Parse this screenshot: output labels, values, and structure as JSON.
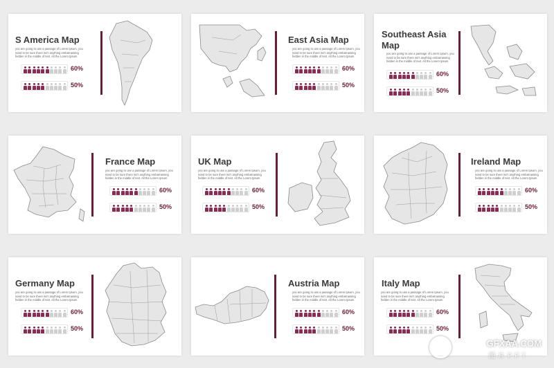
{
  "colors": {
    "accent": "#6b1e38",
    "filled_person": "#8c2a52",
    "empty_person": "#cfcfcf",
    "map_fill": "#e6e6e6",
    "map_stroke": "#8a8a8a"
  },
  "description": "you are going to use a passage of Lorem Ipsum, you need to be sure there isn't anything embarrassing hidden in the middle of text. All the Lorem Ipsum",
  "slides": [
    {
      "name": "s-america-map",
      "title": "S America Map",
      "stats": [
        {
          "value": 0.6,
          "label": "60%"
        },
        {
          "value": 0.5,
          "label": "50%"
        }
      ]
    },
    {
      "name": "east-asia-map",
      "title": "East Asia Map",
      "stats": [
        {
          "value": 0.6,
          "label": "60%"
        },
        {
          "value": 0.5,
          "label": "50%"
        }
      ]
    },
    {
      "name": "southeast-asia-map",
      "title": "Southeast Asia Map",
      "stats": [
        {
          "value": 0.6,
          "label": "60%"
        },
        {
          "value": 0.5,
          "label": "50%"
        }
      ]
    },
    {
      "name": "france-map",
      "title": "France Map",
      "stats": [
        {
          "value": 0.6,
          "label": "60%"
        },
        {
          "value": 0.5,
          "label": "50%"
        }
      ]
    },
    {
      "name": "uk-map",
      "title": "UK Map",
      "stats": [
        {
          "value": 0.6,
          "label": "60%"
        },
        {
          "value": 0.5,
          "label": "50%"
        }
      ]
    },
    {
      "name": "ireland-map",
      "title": "Ireland Map",
      "stats": [
        {
          "value": 0.6,
          "label": "60%"
        },
        {
          "value": 0.5,
          "label": "50%"
        }
      ]
    },
    {
      "name": "germany-map",
      "title": "Germany Map",
      "stats": [
        {
          "value": 0.6,
          "label": "60%"
        },
        {
          "value": 0.5,
          "label": "50%"
        }
      ]
    },
    {
      "name": "austria-map",
      "title": "Austria Map",
      "stats": [
        {
          "value": 0.6,
          "label": "60%"
        },
        {
          "value": 0.5,
          "label": "50%"
        }
      ]
    },
    {
      "name": "italy-map",
      "title": "Italy Map",
      "stats": [
        {
          "value": 0.6,
          "label": "60%"
        },
        {
          "value": 0.5,
          "label": "50%"
        }
      ]
    }
  ],
  "watermark": {
    "text": "GFXAA.COM",
    "subtext": "图 片 P P T"
  }
}
